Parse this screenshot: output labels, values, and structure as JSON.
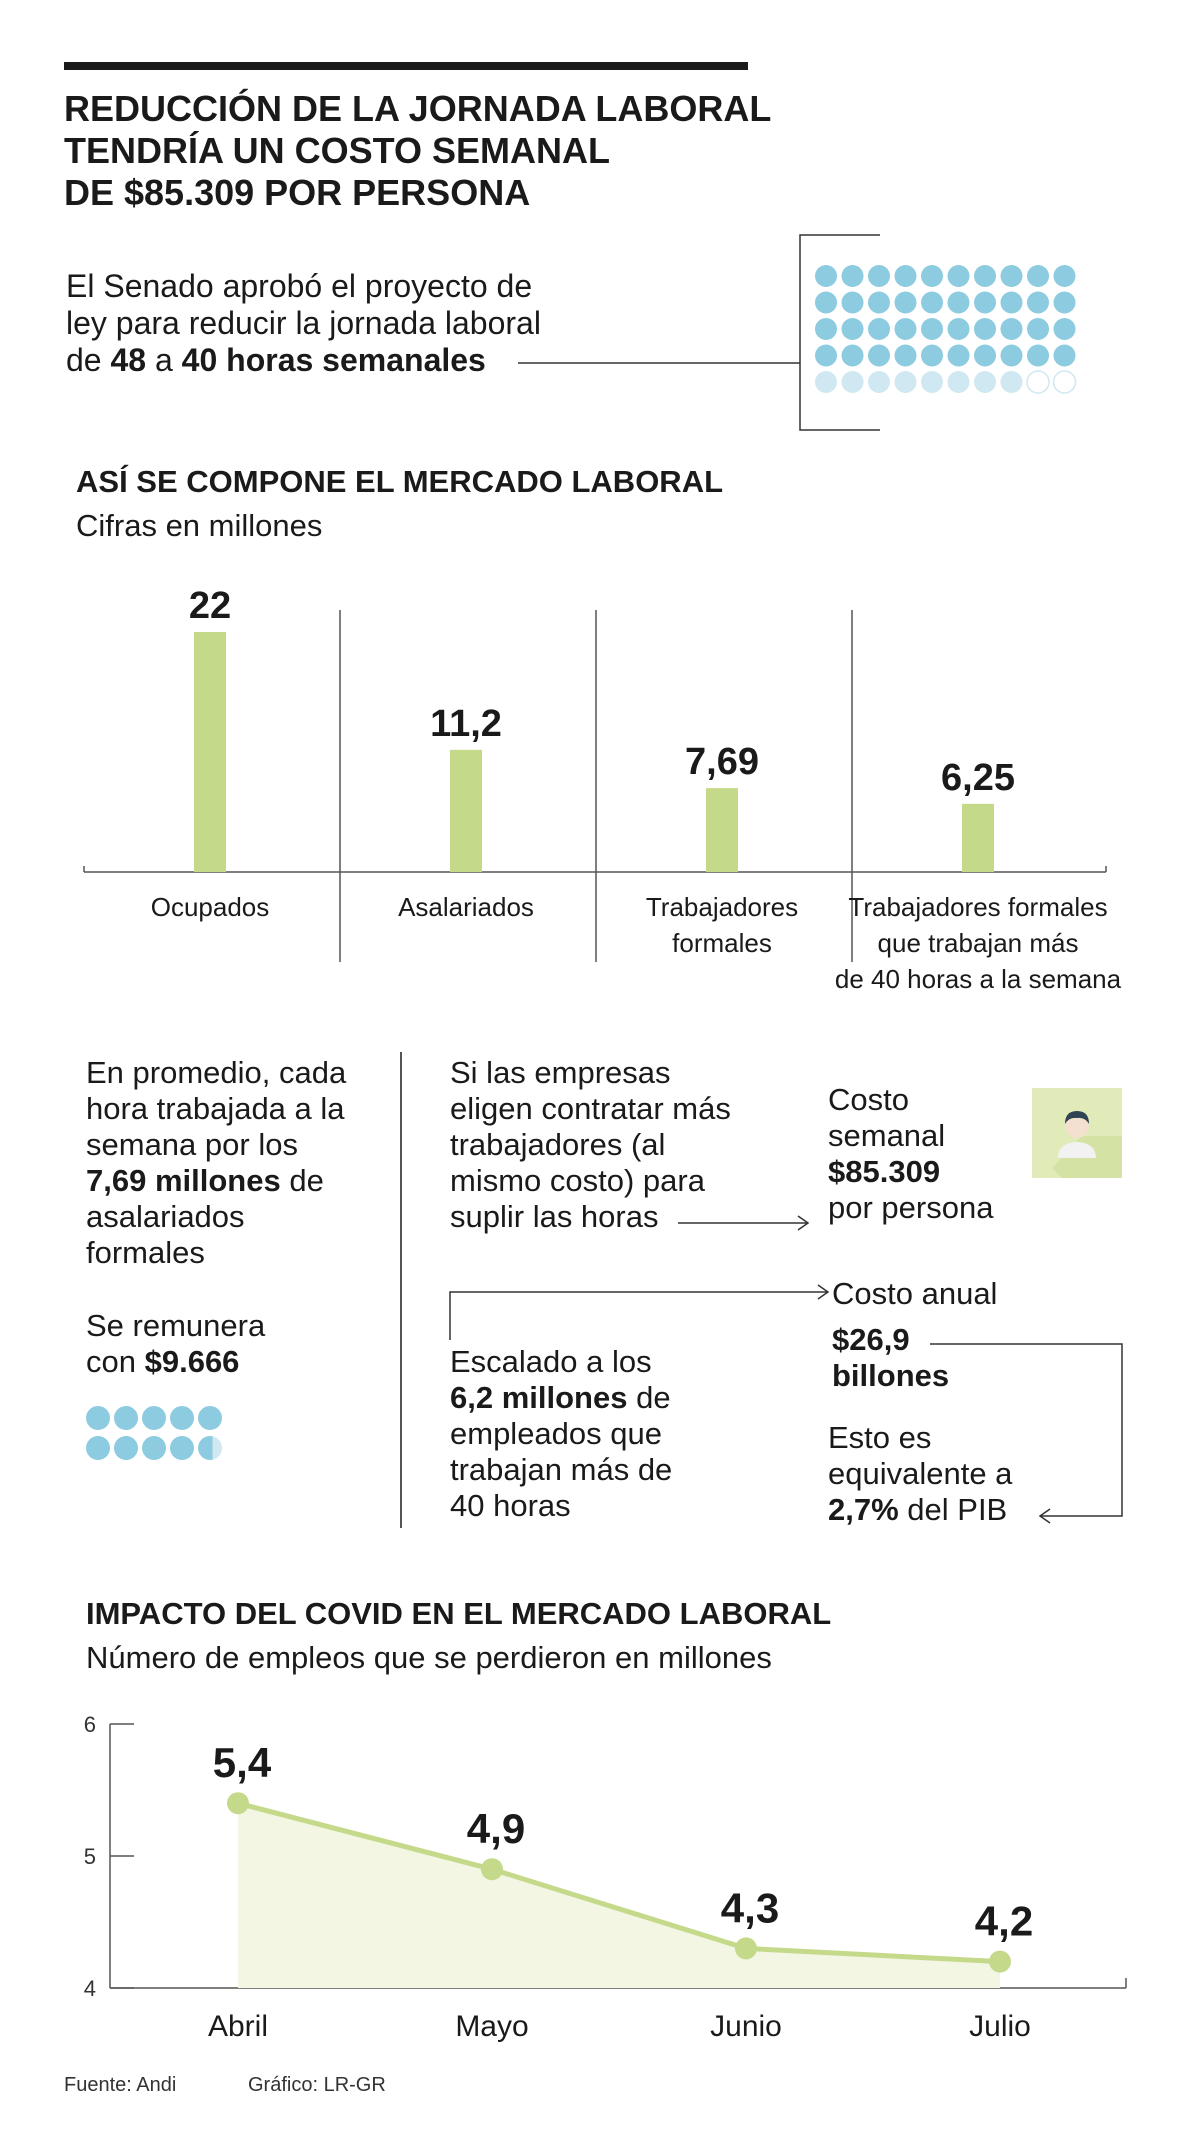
{
  "header": {
    "title_lines": [
      "REDUCCIÓN DE LA JORNADA LABORAL",
      "TENDRÍA UN COSTO SEMANAL",
      "DE $85.309 POR PERSONA"
    ]
  },
  "lead": {
    "line1": "El Senado aprobó el proyecto de",
    "line2": "ley para reducir la jornada laboral",
    "line3_pre": "de ",
    "from_hours": "48",
    "mid": " a ",
    "to_hours": "40 horas semanales",
    "dots_total": 50,
    "dots_full": 40,
    "dots_light": 8,
    "dots_empty": 2
  },
  "section1": {
    "title": "ASÍ SE COMPONE EL MERCADO LABORAL",
    "subtitle": "Cifras en millones"
  },
  "chart_data": [
    {
      "type": "bar",
      "title": "ASÍ SE COMPONE EL MERCADO LABORAL",
      "subtitle": "Cifras en millones",
      "categories": [
        "Ocupados",
        "Asalariados",
        "Trabajadores formales",
        "Trabajadores formales que trabajan más de 40 horas a la semana"
      ],
      "category_lines": [
        [
          "Ocupados"
        ],
        [
          "Asalariados"
        ],
        [
          "Trabajadores",
          "formales"
        ],
        [
          "Trabajadores formales",
          "que trabajan más",
          "de 40 horas a la semana"
        ]
      ],
      "values": [
        22,
        11.2,
        7.69,
        6.25
      ],
      "value_labels": [
        "22",
        "11,2",
        "7,69",
        "6,25"
      ],
      "bar_color": "#c5d98a",
      "ylim": [
        0,
        22
      ]
    },
    {
      "type": "line",
      "title": "IMPACTO DEL COVID EN EL MERCADO LABORAL",
      "subtitle": "Número de empleos que se perdieron en millones",
      "categories": [
        "Abril",
        "Mayo",
        "Junio",
        "Julio"
      ],
      "values": [
        5.4,
        4.9,
        4.3,
        4.2
      ],
      "value_labels": [
        "5,4",
        "4,9",
        "4,3",
        "4,2"
      ],
      "ylim": [
        4,
        6
      ],
      "yticks": [
        4,
        5,
        6
      ],
      "line_color": "#c5d98a",
      "fill_color": "#f2f6e3",
      "grid": false
    }
  ],
  "middle": {
    "left_text": [
      "En promedio, cada",
      "hora trabajada a la",
      "semana por los"
    ],
    "left_bold": "7,69 millones",
    "left_after_bold": " de",
    "left_text2": [
      "asalariados",
      "formales"
    ],
    "remunera_line1": "Se remunera",
    "remunera_pre": "con ",
    "remunera_value": "$9.666",
    "remunera_dots": 9.6,
    "center_text": [
      "Si las empresas",
      "eligen contratar más",
      "trabajadores (al",
      "mismo costo) para",
      "suplir las horas"
    ],
    "costo_semanal_l1": "Costo",
    "costo_semanal_l2": "semanal",
    "costo_semanal_value": "$85.309",
    "costo_semanal_l3": "por persona",
    "escalado_l1": "Escalado a los",
    "escalado_bold": "6,2 millones",
    "escalado_after": " de",
    "escalado_rest": [
      "empleados que",
      "trabajan más de",
      "40 horas"
    ],
    "costo_anual_label": "Costo anual",
    "costo_anual_v1": "$26,9",
    "costo_anual_v2": "billones",
    "equiv_l1": "Esto es",
    "equiv_l2": "equivalente a",
    "equiv_bold": "2,7%",
    "equiv_after": " del PIB"
  },
  "section2": {
    "title": "IMPACTO DEL COVID EN EL MERCADO LABORAL",
    "subtitle": "Número de empleos que se perdieron en millones"
  },
  "footer": {
    "source": "Fuente: Andi",
    "graphic": "Gráfico: LR-GR"
  },
  "colors": {
    "dot_blue": "#8ccbe0",
    "dot_light": "#cfe8f1",
    "green": "#c5d98a",
    "avatar_bg": "#e0ebb9"
  }
}
